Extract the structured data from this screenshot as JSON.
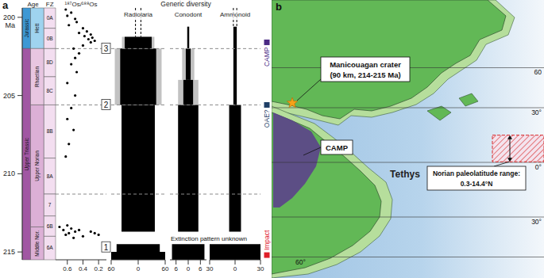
{
  "chart_data": {
    "type": "stratigraphic_range",
    "panel_label": "a",
    "ylim": [
      215.5,
      199.4
    ],
    "yticks": [
      200,
      205,
      210,
      215
    ],
    "y_unit": "Ma",
    "timescale": {
      "title": "Age",
      "eras": [
        {
          "name": "Jurassic",
          "top": 199.4,
          "bottom": 202.0,
          "color": "#3d98d4"
        },
        {
          "name": "Upper Triassic",
          "top": 202.0,
          "bottom": 215.5,
          "color": "#a157a3"
        }
      ],
      "stages": [
        {
          "name": "Hett",
          "top": 199.4,
          "bottom": 202.0,
          "color": "#9fd3ef"
        },
        {
          "name": "Rhaetian",
          "top": 202.0,
          "bottom": 205.6,
          "color": "#e8c6e1"
        },
        {
          "name": "Upper Norian",
          "top": 205.6,
          "bottom": 213.4,
          "color": "#dcb0d6"
        },
        {
          "name": "Middle Nor.",
          "top": 213.4,
          "bottom": 215.5,
          "color": "#dcb0d6"
        }
      ]
    },
    "zones": {
      "title": "FZ",
      "color": "#f3def0",
      "intervals": [
        {
          "name": "0A",
          "top": 199.4,
          "bottom": 200.7
        },
        {
          "name": "0B",
          "top": 200.7,
          "bottom": 202.0
        },
        {
          "name": "8D",
          "top": 202.0,
          "bottom": 203.8
        },
        {
          "name": "8C",
          "top": 203.8,
          "bottom": 205.6
        },
        {
          "name": "8B",
          "top": 205.6,
          "bottom": 209.0
        },
        {
          "name": "8A",
          "top": 209.0,
          "bottom": 211.3
        },
        {
          "name": "7",
          "top": 211.3,
          "bottom": 212.7
        },
        {
          "name": "6B",
          "top": 212.7,
          "bottom": 214.0
        },
        {
          "name": "6A",
          "top": 214.0,
          "bottom": 215.5
        }
      ]
    },
    "isotope": {
      "type": "scatter",
      "title": "¹⁸⁷Os/¹⁸⁸Os",
      "xlim": [
        0.75,
        0.1
      ],
      "xticks": [
        0.6,
        0.4,
        0.2
      ],
      "color": "#000000",
      "x": [
        0.62,
        0.55,
        0.6,
        0.5,
        0.48,
        0.58,
        0.4,
        0.35,
        0.45,
        0.3,
        0.38,
        0.28,
        0.33,
        0.25,
        0.3,
        0.4,
        0.52,
        0.45,
        0.5,
        0.55,
        0.48,
        0.6,
        0.5,
        0.55,
        0.6,
        0.52,
        0.58,
        0.62,
        0.6,
        0.7,
        0.55,
        0.65,
        0.45,
        0.5,
        0.3,
        0.58,
        0.25,
        0.62,
        0.2,
        0.4,
        0.52
      ],
      "y": [
        199.5,
        199.7,
        199.9,
        200.1,
        200.3,
        200.5,
        200.7,
        200.9,
        201.0,
        201.1,
        201.2,
        201.3,
        201.4,
        201.5,
        201.6,
        201.8,
        202.0,
        202.3,
        202.6,
        203.0,
        203.5,
        204.2,
        205.0,
        205.8,
        206.5,
        207.2,
        208.1,
        208.9,
        213.3,
        213.4,
        213.5,
        213.6,
        213.6,
        213.7,
        213.7,
        213.8,
        213.8,
        213.9,
        213.9,
        214.0,
        214.1
      ]
    },
    "diversity": {
      "title": "Generic diversity",
      "series": [
        {
          "name": "Radiolaria",
          "color": "#000000",
          "xlim": [
            -60,
            60
          ],
          "xticks": [
            {
              "value": -60,
              "label": "60"
            },
            0,
            60
          ],
          "bins": [
            201.25,
            202.0,
            205.6,
            213.7,
            214.5,
            215.0,
            215.5
          ],
          "values": [
            30,
            40,
            37,
            null,
            48,
            60
          ],
          "max_values": [
            36,
            52,
            null,
            null,
            null,
            null
          ],
          "survivors": [
            -6,
            6
          ]
        },
        {
          "name": "Conodont",
          "color": "#000000",
          "xlim": [
            -9,
            9
          ],
          "xticks": [
            {
              "value": -6,
              "label": "6"
            },
            0,
            6
          ],
          "bins": [
            200.6,
            202.0,
            204.0,
            205.6,
            213.7,
            214.5,
            215.5
          ],
          "values": [
            0.4,
            1.2,
            2.4,
            5,
            null,
            8
          ],
          "max_values": [
            0.8,
            3,
            5,
            null,
            null,
            null
          ],
          "survivors": []
        },
        {
          "name": "Ammonoid",
          "color": "#000000",
          "xlim": [
            -30,
            30
          ],
          "xticks": [
            {
              "value": -30,
              "label": "30"
            },
            0,
            30
          ],
          "bins": [
            200.6,
            205.6,
            213.7,
            214.5,
            215.5
          ],
          "values": [
            2,
            7,
            null,
            30
          ],
          "max_values": [
            null,
            null,
            null,
            null
          ],
          "survivors": [
            -2,
            2
          ]
        }
      ]
    },
    "boundaries": {
      "line_style": "dashed",
      "color": "#8c8c8c",
      "values": [
        202.0,
        205.6,
        211.3
      ],
      "markers": [
        {
          "label": "3",
          "age": 202.0
        },
        {
          "label": "2",
          "age": 205.6
        },
        {
          "label": "1",
          "age": 214.7
        }
      ]
    },
    "annotation": {
      "text": "Extinction pattern unknown",
      "age": 214.15
    },
    "events": [
      {
        "label": "CAMP",
        "age": 201.6,
        "color": "#4b2a84"
      },
      {
        "label": "OAE?",
        "age": 205.6,
        "color": "#1f3f66"
      },
      {
        "label": "Impact",
        "age": 215.2,
        "color": "#e0202a"
      }
    ]
  },
  "map": {
    "panel_label": "b",
    "ocean_label": "Tethys",
    "latitudes": [
      60,
      30,
      0,
      -30,
      -60
    ],
    "latitude_labels": [
      "60",
      "30°",
      "0°",
      "30°",
      "60°"
    ],
    "crater": {
      "name": "Manicouagan crater",
      "detail": "(90 km, 214-215 Ma)"
    },
    "camp_label": "CAMP",
    "paleolatitude": {
      "label": "Norian paleolatitude range:",
      "range_label": "0.3-14.4°N",
      "range": [
        0.3,
        14.4
      ],
      "color": "#d62728"
    }
  }
}
